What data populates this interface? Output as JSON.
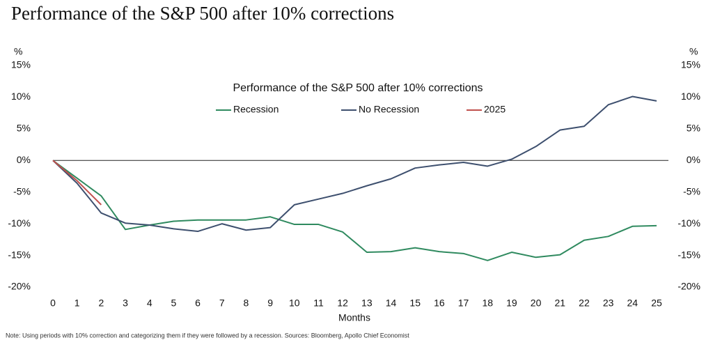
{
  "chart_data": {
    "type": "line",
    "title": "Performance of the S&P 500 after 10% corrections",
    "subtitle": "Performance of the S&P 500 after 10% corrections",
    "x_label": "Months",
    "y_unit": "%",
    "y2_unit": "%",
    "note": "Note: Using periods with 10% correction and categorizing them if they were followed by a recession. Sources: Bloomberg, Apollo Chief Economist",
    "x": [
      0,
      1,
      2,
      3,
      4,
      5,
      6,
      7,
      8,
      9,
      10,
      11,
      12,
      13,
      14,
      15,
      16,
      17,
      18,
      19,
      20,
      21,
      22,
      23,
      24,
      25
    ],
    "xlim": [
      0,
      25
    ],
    "xticks": [
      0,
      1,
      2,
      3,
      4,
      5,
      6,
      7,
      8,
      9,
      10,
      11,
      12,
      13,
      14,
      15,
      16,
      17,
      18,
      19,
      20,
      21,
      22,
      23,
      24,
      25
    ],
    "ylim": [
      -20,
      15
    ],
    "yticks": [
      {
        "value": -20,
        "label": "-20%"
      },
      {
        "value": -15,
        "label": "-15%"
      },
      {
        "value": -10,
        "label": "-10%"
      },
      {
        "value": -5,
        "label": "-5%"
      },
      {
        "value": 0,
        "label": "0%"
      },
      {
        "value": 5,
        "label": "5%"
      },
      {
        "value": 10,
        "label": "10%"
      },
      {
        "value": 15,
        "label": "15%"
      }
    ],
    "y2lim": [
      -20,
      15
    ],
    "y2ticks": [
      {
        "value": -20,
        "label": "-20%"
      },
      {
        "value": -15,
        "label": "-15%"
      },
      {
        "value": -10,
        "label": "-10%"
      },
      {
        "value": -5,
        "label": "-5%"
      },
      {
        "value": 0,
        "label": "0%"
      },
      {
        "value": 5,
        "label": "5%"
      },
      {
        "value": 10,
        "label": "10%"
      },
      {
        "value": 15,
        "label": "15%"
      }
    ],
    "grid": false,
    "legend": "top",
    "series": [
      {
        "name": "Recession",
        "color": "#2f8a5f",
        "values": [
          0,
          -2.8,
          -5.6,
          -10.9,
          -10.2,
          -9.6,
          -9.4,
          -9.4,
          -9.4,
          -8.9,
          -10.1,
          -10.1,
          -11.3,
          -14.5,
          -14.4,
          -13.8,
          -14.4,
          -14.7,
          -15.8,
          -14.5,
          -15.3,
          -14.9,
          -12.6,
          -12.0,
          -10.4,
          -10.3
        ]
      },
      {
        "name": "No Recession",
        "color": "#3d4f6e",
        "values": [
          0,
          -3.6,
          -8.3,
          -9.9,
          -10.2,
          -10.8,
          -11.2,
          -10.0,
          -11.0,
          -10.6,
          -7.0,
          -6.1,
          -5.2,
          -4.0,
          -2.9,
          -1.2,
          -0.7,
          -0.3,
          -0.9,
          0.2,
          2.2,
          4.8,
          5.4,
          8.8,
          10.1,
          9.4
        ]
      },
      {
        "name": "2025",
        "color": "#c0504d",
        "values": [
          0,
          -3.2,
          -7.0,
          null,
          null,
          null,
          null,
          null,
          null,
          null,
          null,
          null,
          null,
          null,
          null,
          null,
          null,
          null,
          null,
          null,
          null,
          null,
          null,
          null,
          null,
          null
        ]
      }
    ]
  }
}
